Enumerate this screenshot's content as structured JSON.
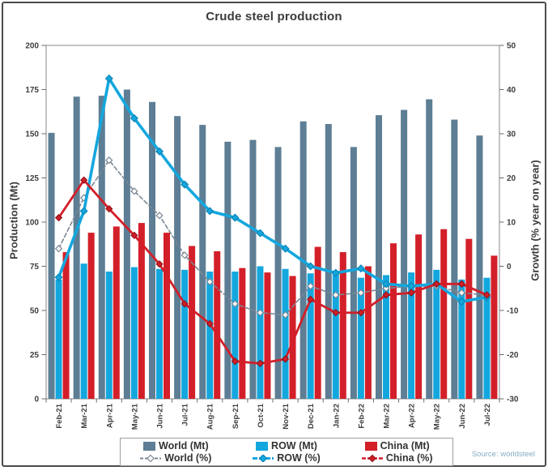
{
  "chart_data": {
    "type": "combo-bar-line",
    "title": "Crude steel production",
    "source": "Source: worldsteel",
    "grid": false,
    "legend_position": "bottom",
    "categories": [
      "Feb-21",
      "Mar-21",
      "Apr-21",
      "May-21",
      "Jun-21",
      "Jul-21",
      "Aug-21",
      "Sep-21",
      "Oct-21",
      "Nov-21",
      "Dec-21",
      "Jan-22",
      "Feb-22",
      "Mar-22",
      "Apr-22",
      "May-22",
      "Jun-22",
      "Jul-22"
    ],
    "left_axis": {
      "label": "Production (Mt)",
      "min": 0,
      "max": 200,
      "step": 25
    },
    "right_axis": {
      "label": "Growth (% year on year)",
      "min": -30,
      "max": 50,
      "step": 10
    },
    "bar_series": [
      {
        "name": "World (Mt)",
        "color": "#5d7e94",
        "values": [
          150.5,
          171,
          171.5,
          175,
          168,
          160,
          155,
          145.5,
          146.5,
          142.5,
          157,
          155.5,
          142.5,
          160.5,
          163.5,
          169.5,
          158,
          149
        ]
      },
      {
        "name": "ROW (Mt)",
        "color": "#14a7de",
        "values": [
          67.5,
          76.5,
          72,
          74.5,
          73.5,
          73,
          72,
          72,
          75,
          73.5,
          71,
          72,
          68.5,
          70,
          71.5,
          73,
          67.5,
          68.5
        ]
      },
      {
        "name": "China (Mt)",
        "color": "#d31f29",
        "values": [
          83,
          94,
          97.5,
          99.5,
          94,
          86.5,
          83.5,
          74,
          71.5,
          69.5,
          86,
          83,
          75,
          88,
          93,
          96,
          90.5,
          81
        ]
      }
    ],
    "line_series": [
      {
        "name": "World (%)",
        "color": "#7b8794",
        "dash": "5 3",
        "width": 1.6,
        "marker_fill": "#ffffff",
        "marker_stroke": "#7b8794",
        "values": [
          4,
          15.5,
          24,
          17,
          11.5,
          2.5,
          -3.5,
          -8.5,
          -10.5,
          -11,
          -4.5,
          -6.5,
          -6,
          -5,
          -4.5,
          -4.5,
          -6,
          -6.5
        ]
      },
      {
        "name": "ROW (%)",
        "color": "#14a7de",
        "dash": "",
        "width": 3.6,
        "marker_fill": "#14a7de",
        "marker_stroke": "#0e85b5",
        "values": [
          -2.5,
          12.5,
          42.5,
          33.5,
          26,
          18.5,
          12.5,
          11,
          7.5,
          4,
          0,
          -1.5,
          -0.5,
          -4,
          -4.5,
          -4,
          -8,
          -7
        ]
      },
      {
        "name": "China (%)",
        "color": "#d31f29",
        "dash": "",
        "width": 2.8,
        "marker_fill": "#d31f29",
        "marker_stroke": "#951219",
        "values": [
          11,
          19.5,
          13,
          7,
          0.5,
          -8.5,
          -13,
          -21.5,
          -22,
          -21,
          -7.5,
          -10.5,
          -10.5,
          -6.5,
          -6,
          -4,
          -4,
          -6.5
        ]
      }
    ],
    "colors": {
      "title_text": "#3b3b3b",
      "axis_text": "#3d3d3d",
      "source_text": "#85aec5",
      "frame_border": "#4b4b4b",
      "plot_border": "#9b9b9b"
    }
  }
}
